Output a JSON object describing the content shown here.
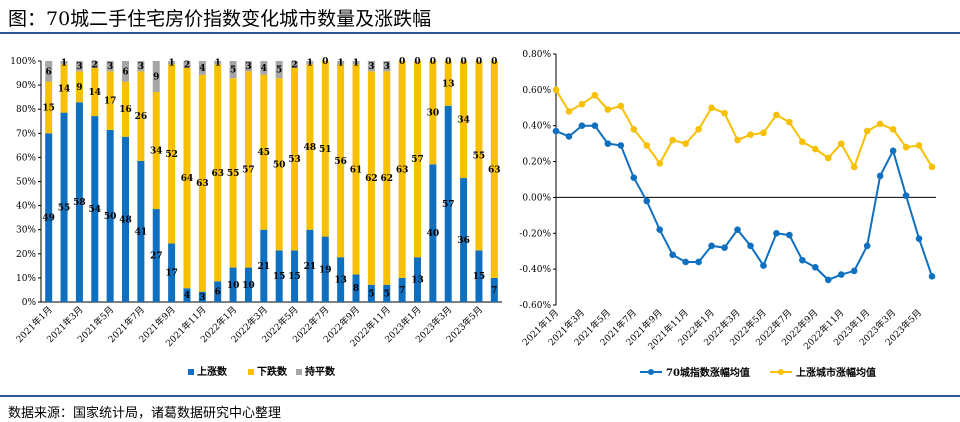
{
  "page": {
    "title": "图：70城二手住宅房价指数变化城市数量及涨跌幅",
    "source": "数据来源：国家统计局，诸葛数据研究中心整理"
  },
  "colors": {
    "blue": "#0f70c0",
    "yellow": "#f7c002",
    "gray": "#a6a6a6",
    "rule": "#2b5797"
  },
  "chart_data": [
    {
      "type": "bar",
      "stacked": true,
      "percent": true,
      "categories": [
        "2021年1月",
        "2021年2月",
        "2021年3月",
        "2021年4月",
        "2021年5月",
        "2021年6月",
        "2021年7月",
        "2021年8月",
        "2021年9月",
        "2021年10月",
        "2021年11月",
        "2021年12月",
        "2022年1月",
        "2022年2月",
        "2022年3月",
        "2022年4月",
        "2022年5月",
        "2022年6月",
        "2022年7月",
        "2022年8月",
        "2022年9月",
        "2022年10月",
        "2022年11月",
        "2022年12月",
        "2023年1月",
        "2023年2月",
        "2023年3月",
        "2023年4月",
        "2023年5月",
        "2023年6月"
      ],
      "x_tick_labels": [
        "2021年1月",
        "2021年3月",
        "2021年5月",
        "2021年7月",
        "2021年9月",
        "2021年11月",
        "2022年1月",
        "2022年3月",
        "2022年5月",
        "2022年7月",
        "2022年9月",
        "2022年11月",
        "2023年1月",
        "2023年3月",
        "2023年5月"
      ],
      "y_ticks": [
        "0%",
        "10%",
        "20%",
        "30%",
        "40%",
        "50%",
        "60%",
        "70%",
        "80%",
        "90%",
        "100%"
      ],
      "ylim": [
        0,
        100
      ],
      "series": [
        {
          "name": "上涨数",
          "values": [
            49,
            55,
            58,
            54,
            50,
            48,
            41,
            27,
            17,
            4,
            3,
            6,
            10,
            10,
            21,
            15,
            15,
            21,
            19,
            13,
            8,
            5,
            5,
            7,
            13,
            40,
            57,
            36,
            15,
            7
          ]
        },
        {
          "name": "下跌数",
          "values": [
            15,
            14,
            9,
            14,
            17,
            16,
            26,
            34,
            52,
            64,
            63,
            63,
            55,
            57,
            45,
            50,
            53,
            48,
            51,
            56,
            61,
            62,
            62,
            63,
            57,
            30,
            13,
            34,
            55,
            63
          ]
        },
        {
          "name": "持平数",
          "values": [
            6,
            1,
            3,
            2,
            3,
            6,
            3,
            9,
            1,
            2,
            4,
            1,
            5,
            3,
            4,
            5,
            2,
            1,
            0,
            1,
            1,
            3,
            3,
            0,
            0,
            0,
            0,
            0,
            0,
            0
          ]
        }
      ],
      "legend_position": "bottom",
      "grid": false
    },
    {
      "type": "line",
      "categories": [
        "2021年1月",
        "2021年2月",
        "2021年3月",
        "2021年4月",
        "2021年5月",
        "2021年6月",
        "2021年7月",
        "2021年8月",
        "2021年9月",
        "2021年10月",
        "2021年11月",
        "2021年12月",
        "2022年1月",
        "2022年2月",
        "2022年3月",
        "2022年4月",
        "2022年5月",
        "2022年6月",
        "2022年7月",
        "2022年8月",
        "2022年9月",
        "2022年10月",
        "2022年11月",
        "2022年12月",
        "2023年1月",
        "2023年2月",
        "2023年3月",
        "2023年4月",
        "2023年5月",
        "2023年6月"
      ],
      "x_tick_labels": [
        "2021年1月",
        "2021年3月",
        "2021年5月",
        "2021年7月",
        "2021年9月",
        "2021年11月",
        "2022年1月",
        "2022年3月",
        "2022年5月",
        "2022年7月",
        "2022年9月",
        "2022年11月",
        "2023年1月",
        "2023年3月",
        "2023年5月"
      ],
      "y_ticks": [
        "0.80%",
        "0.60%",
        "0.40%",
        "0.20%",
        "0.00%",
        "-0.20%",
        "-0.40%",
        "-0.60%"
      ],
      "ylim": [
        -0.6,
        0.8
      ],
      "y_unit": "%",
      "series": [
        {
          "name": "70城指数涨幅均值",
          "values": [
            0.37,
            0.34,
            0.4,
            0.4,
            0.3,
            0.29,
            0.11,
            -0.02,
            -0.18,
            -0.32,
            -0.36,
            -0.36,
            -0.27,
            -0.28,
            -0.18,
            -0.27,
            -0.38,
            -0.2,
            -0.21,
            -0.35,
            -0.39,
            -0.46,
            -0.43,
            -0.41,
            -0.27,
            0.12,
            0.26,
            0.01,
            -0.23,
            -0.44
          ]
        },
        {
          "name": "上涨城市涨幅均值",
          "values": [
            0.6,
            0.48,
            0.52,
            0.57,
            0.49,
            0.51,
            0.38,
            0.29,
            0.19,
            0.32,
            0.3,
            0.38,
            0.5,
            0.47,
            0.32,
            0.35,
            0.36,
            0.46,
            0.42,
            0.31,
            0.27,
            0.22,
            0.3,
            0.17,
            0.37,
            0.41,
            0.38,
            0.28,
            0.29,
            0.17
          ]
        }
      ],
      "legend_position": "bottom",
      "grid": false
    }
  ]
}
